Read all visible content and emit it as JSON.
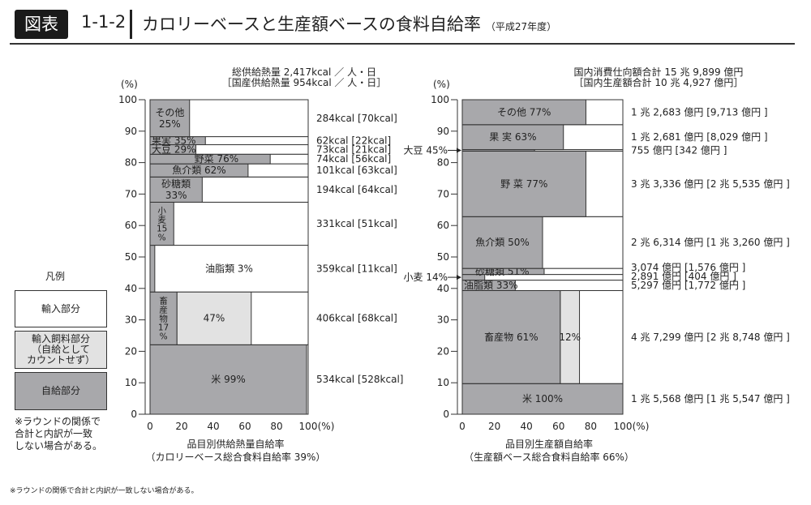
{
  "header": {
    "tag": "図表",
    "number": "1-1-2",
    "title": "カロリーベースと生産額ベースの食料自給率",
    "subtitle": "（平成27年度）"
  },
  "legend": {
    "title": "凡例",
    "items": [
      {
        "label": "輸入部分",
        "color": "#ffffff"
      },
      {
        "label": "輸入飼料部分\n（自給として\nカウントせず）",
        "color": "#e2e2e2"
      },
      {
        "label": "自給部分",
        "color": "#a8a8ab"
      }
    ],
    "note": "※ラウンドの関係で\n合計と内訳が一致\nしない場合がある。"
  },
  "footnote": "※ラウンドの関係で合計と内訳が一致しない場合がある。",
  "colors": {
    "self": "#a8a8ab",
    "feed": "#e2e2e2",
    "import": "#ffffff",
    "line": "#333333"
  },
  "chart_data": [
    {
      "type": "bar",
      "name": "calorie",
      "header": [
        "総供給熱量 2,417kcal ／ 人・日",
        "［国産供給熱量 954kcal ／ 人・日］"
      ],
      "ylabel": "(%)",
      "yticks": [
        "0",
        "10",
        "20",
        "30",
        "40",
        "50",
        "60",
        "70",
        "80",
        "90",
        "100"
      ],
      "xticks": [
        "0",
        "20",
        "40",
        "60",
        "80",
        "100"
      ],
      "xunit": "(%)",
      "ylim": [
        0,
        100
      ],
      "xlim": [
        0,
        100
      ],
      "xlabel": "品目別供給熱量自給率",
      "xlabel2": "（カロリーベース総合食料自給率 39%）",
      "items": [
        {
          "name": "米",
          "total": 534,
          "self_rate": 99,
          "feed_rate": 0,
          "lines": [
            "米 99%"
          ],
          "value": "534kcal [528kcal]"
        },
        {
          "name": "畜産物",
          "total": 406,
          "self_rate": 17,
          "feed_rate": 47,
          "lines": [
            "畜",
            "産",
            "物",
            "17",
            "%"
          ],
          "feed_label": "47%",
          "value": "406kcal [68kcal]"
        },
        {
          "name": "油脂類",
          "total": 359,
          "self_rate": 3,
          "feed_rate": 0,
          "lines": [
            "油脂類 3%"
          ],
          "value": "359kcal [11kcal]"
        },
        {
          "name": "小麦",
          "total": 331,
          "self_rate": 15,
          "feed_rate": 0,
          "lines": [
            "小",
            "麦",
            "15",
            "%"
          ],
          "value": "331kcal [51kcal]"
        },
        {
          "name": "砂糖類",
          "total": 194,
          "self_rate": 33,
          "feed_rate": 0,
          "lines": [
            "砂糖類",
            "33%"
          ],
          "value": "194kcal [64kcal]"
        },
        {
          "name": "魚介類",
          "total": 101,
          "self_rate": 62,
          "feed_rate": 0,
          "lines": [
            "魚介類 62%"
          ],
          "value": "101kcal [63kcal]"
        },
        {
          "name": "野菜",
          "total": 74,
          "self_rate": 76,
          "feed_rate": 0,
          "lines": [
            "野菜 76%"
          ],
          "value": "74kcal [56kcal]"
        },
        {
          "name": "大豆",
          "total": 73,
          "self_rate": 29,
          "feed_rate": 0,
          "lines": [
            "大豆 29%"
          ],
          "value": "73kcal [21kcal]"
        },
        {
          "name": "果実",
          "total": 62,
          "self_rate": 35,
          "feed_rate": 0,
          "lines": [
            "果実 35%"
          ],
          "value": "62kcal [22kcal]"
        },
        {
          "name": "その他",
          "total": 284,
          "self_rate": 25,
          "feed_rate": 0,
          "lines": [
            "その他",
            "25%"
          ],
          "value": "284kcal [70kcal]"
        }
      ]
    },
    {
      "type": "bar",
      "name": "production-value",
      "header": [
        "国内消費仕向額合計 15 兆 9,899 億円",
        "［国内生産額合計 10 兆 4,927 億円］"
      ],
      "ylabel": "(%)",
      "yticks": [
        "0",
        "10",
        "20",
        "30",
        "40",
        "50",
        "60",
        "70",
        "80",
        "90",
        "100"
      ],
      "xticks": [
        "0",
        "20",
        "40",
        "60",
        "80",
        "100"
      ],
      "xunit": "(%)",
      "ylim": [
        0,
        100
      ],
      "xlim": [
        0,
        100
      ],
      "xlabel": "品目別生産額自給率",
      "xlabel2": "（生産額ベース総合食料自給率 66%）",
      "items": [
        {
          "name": "米",
          "total": 15568,
          "self_rate": 100,
          "feed_rate": 0,
          "lines": [
            "米 100%"
          ],
          "value": "1 兆 5,568 億円 [1 兆 5,547 億円 ]"
        },
        {
          "name": "畜産物",
          "total": 47299,
          "self_rate": 61,
          "feed_rate": 12,
          "lines": [
            "畜産物 61%"
          ],
          "feed_label": "12%",
          "value": "4 兆 7,299 億円 [2 兆 8,748 億円 ]"
        },
        {
          "name": "油脂類",
          "total": 5297,
          "self_rate": 33,
          "feed_rate": 0,
          "lines": [
            "油脂類 33%"
          ],
          "value": "5,297 億円 [1,772 億円 ]"
        },
        {
          "name": "小麦",
          "total": 2891,
          "self_rate": 14,
          "feed_rate": 0,
          "outside": "小麦 14%",
          "lines": [],
          "value": "2,891 億円 [404 億円 ]"
        },
        {
          "name": "砂糖類",
          "total": 3074,
          "self_rate": 51,
          "feed_rate": 0,
          "lines": [
            "砂糖類 51%"
          ],
          "value": "3,074 億円 [1,576 億円 ]"
        },
        {
          "name": "魚介類",
          "total": 26314,
          "self_rate": 50,
          "feed_rate": 0,
          "lines": [
            "魚介類 50%"
          ],
          "value": "2 兆 6,314 億円 [1 兆 3,260 億円 ]"
        },
        {
          "name": "野菜",
          "total": 33336,
          "self_rate": 77,
          "feed_rate": 0,
          "lines": [
            "野 菜 77%"
          ],
          "value": "3 兆 3,336 億円 [2 兆 5,535 億円 ]"
        },
        {
          "name": "大豆",
          "total": 755,
          "self_rate": 45,
          "feed_rate": 0,
          "outside": "大豆 45%",
          "lines": [],
          "value": "755 億円 [342 億円 ]"
        },
        {
          "name": "果実",
          "total": 12681,
          "self_rate": 63,
          "feed_rate": 0,
          "lines": [
            "果 実 63%"
          ],
          "value": "1 兆 2,681 億円 [8,029 億円 ]"
        },
        {
          "name": "その他",
          "total": 12683,
          "self_rate": 77,
          "feed_rate": 0,
          "lines": [
            "その他 77%"
          ],
          "value": "1 兆 2,683 億円 [9,713 億円 ]"
        }
      ]
    }
  ]
}
